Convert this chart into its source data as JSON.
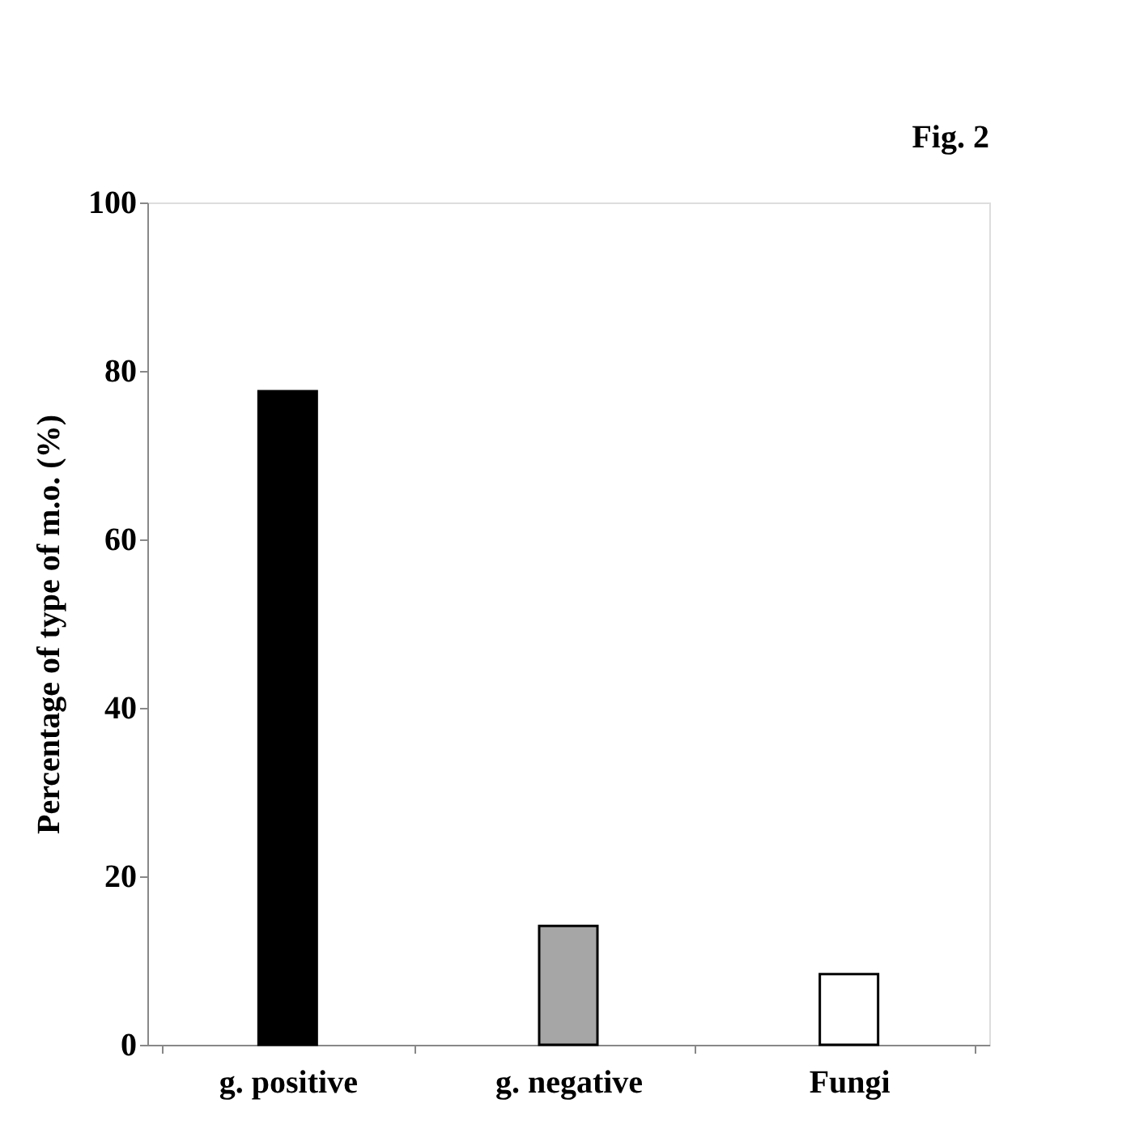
{
  "chart_data": {
    "type": "bar",
    "categories": [
      "g. positive",
      "g. negative",
      "Fungi"
    ],
    "values": [
      77.6,
      14.1,
      8.4
    ],
    "colors": [
      "#000000",
      "#a6a6a6",
      "#ffffff"
    ],
    "ylabel": "Percentage of type of m.o. (%)",
    "ylim": [
      0,
      100
    ],
    "yticks": [
      0,
      20,
      40,
      60,
      80,
      100
    ],
    "grid": false,
    "legend": false,
    "annotations": [
      "Fig. 2"
    ]
  }
}
